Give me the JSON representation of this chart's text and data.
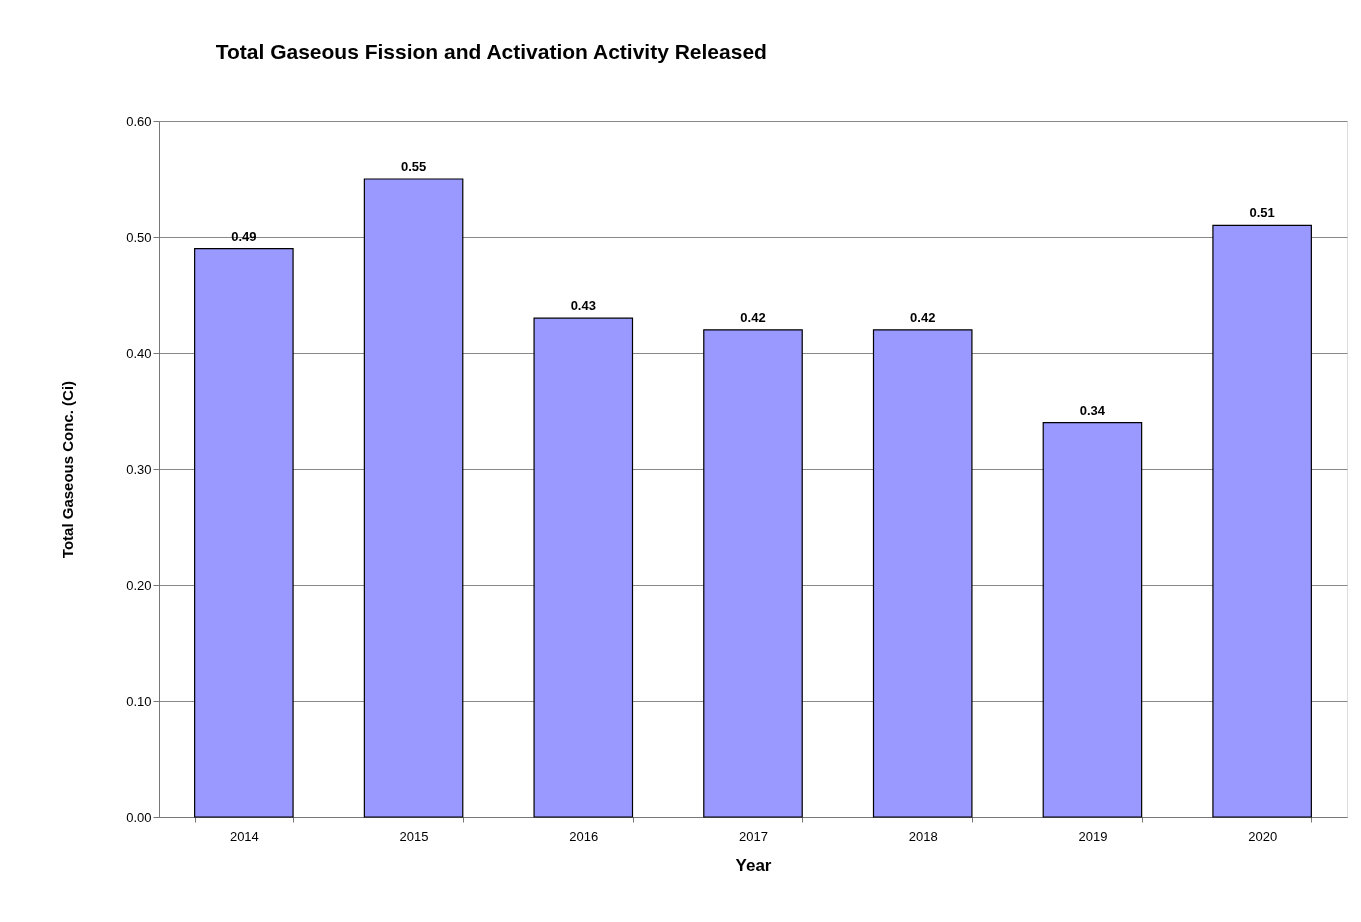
{
  "chart_data": {
    "type": "bar",
    "title": "Total Gaseous Fission and Activation Activity Released",
    "xlabel": "Year",
    "ylabel": "Total Gaseous Conc. (Ci)",
    "categories": [
      "2014",
      "2015",
      "2016",
      "2017",
      "2018",
      "2019",
      "2020"
    ],
    "values": [
      0.49,
      0.55,
      0.43,
      0.42,
      0.42,
      0.34,
      0.51
    ],
    "color": "#9999ff",
    "data_labels": true,
    "grid": "y",
    "ylim": [
      0,
      0.6
    ],
    "yticks": [
      {
        "value": 0,
        "label": "0.00"
      },
      {
        "value": 0.1,
        "label": "0.10"
      },
      {
        "value": 0.2,
        "label": "0.20"
      },
      {
        "value": 0.3,
        "label": "0.30"
      },
      {
        "value": 0.4,
        "label": "0.40"
      },
      {
        "value": 0.5,
        "label": "0.50"
      },
      {
        "value": 0.6,
        "label": "0.60"
      }
    ]
  }
}
